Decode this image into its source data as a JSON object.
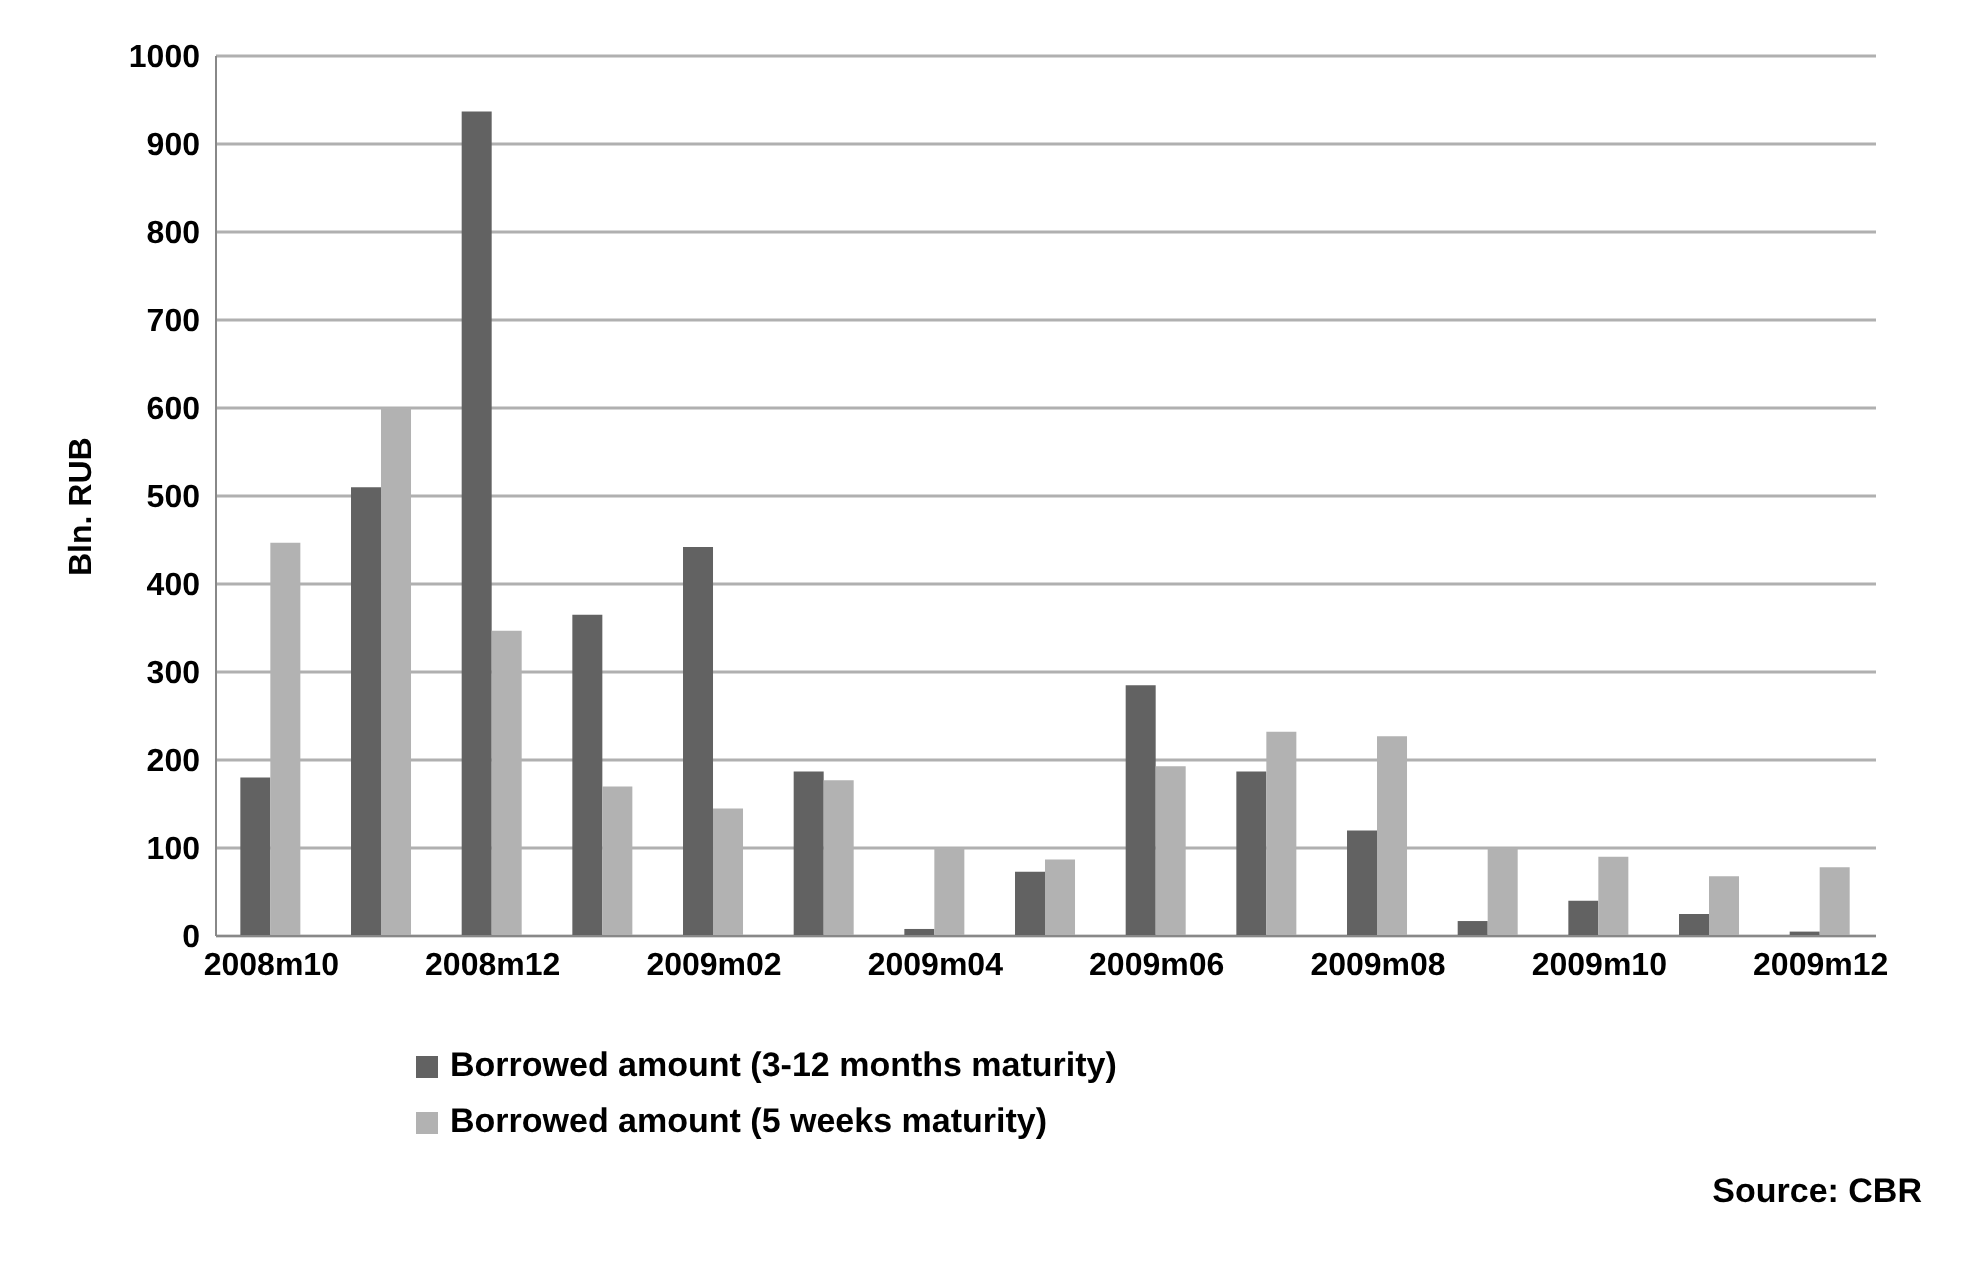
{
  "chart_data": {
    "type": "bar",
    "ylabel": "Bln. RUB",
    "categories": [
      "2008m10",
      null,
      "2008m12",
      null,
      "2009m02",
      null,
      "2009m04",
      null,
      "2009m06",
      null,
      "2009m08",
      null,
      "2009m10",
      null,
      "2009m12"
    ],
    "series": [
      {
        "name": "Borrowed amount (3-12 months maturity)",
        "color": "#626262",
        "values": [
          180,
          510,
          937,
          365,
          442,
          187,
          8,
          73,
          285,
          187,
          120,
          17,
          40,
          25,
          5
        ]
      },
      {
        "name": "Borrowed amount (5 weeks maturity)",
        "color": "#b2b2b2",
        "values": [
          447,
          600,
          347,
          170,
          145,
          177,
          100,
          87,
          193,
          232,
          227,
          100,
          90,
          68,
          78
        ]
      }
    ],
    "ylim": [
      0,
      1000
    ],
    "yticks": [
      0,
      100,
      200,
      300,
      400,
      500,
      600,
      700,
      800,
      900,
      1000
    ],
    "grid": "y",
    "legend": "bottom",
    "annotations": [
      "Source: CBR"
    ]
  }
}
